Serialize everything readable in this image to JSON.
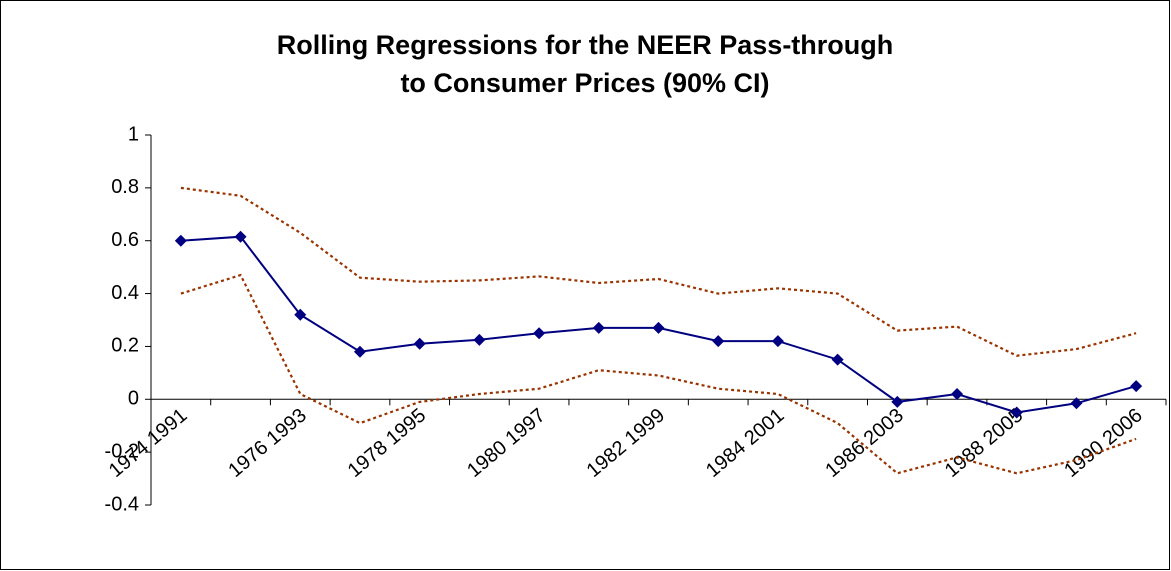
{
  "chart_data": {
    "type": "line",
    "title": [
      "Rolling Regressions for the NEER Pass-through",
      "to Consumer Prices (90% CI)"
    ],
    "categories": [
      "1974 1991",
      null,
      "1976 1993",
      null,
      "1978 1995",
      null,
      "1980 1997",
      null,
      "1982 1999",
      null,
      "1984 2001",
      null,
      "1986 2003",
      null,
      "1988 2005",
      null,
      "1990 2006"
    ],
    "series": [
      {
        "color": "#993300",
        "style": "dotted",
        "marker": false,
        "values": [
          0.8,
          0.77,
          0.63,
          0.46,
          0.445,
          0.45,
          0.465,
          0.44,
          0.455,
          0.4,
          0.42,
          0.4,
          0.26,
          0.275,
          0.165,
          0.19,
          0.25
        ]
      },
      {
        "color": "#000080",
        "style": "solid",
        "marker": true,
        "values": [
          0.6,
          0.615,
          0.32,
          0.18,
          0.21,
          0.225,
          0.25,
          0.27,
          0.27,
          0.22,
          0.22,
          0.15,
          -0.01,
          0.02,
          -0.05,
          -0.015,
          0.05
        ]
      },
      {
        "color": "#993300",
        "style": "dotted",
        "marker": false,
        "values": [
          0.4,
          0.47,
          0.02,
          -0.09,
          -0.01,
          0.02,
          0.04,
          0.11,
          0.09,
          0.04,
          0.02,
          -0.09,
          -0.28,
          -0.22,
          -0.28,
          -0.23,
          -0.15
        ]
      }
    ],
    "ylim": [
      -0.4,
      1
    ],
    "yticks": [
      -0.4,
      -0.2,
      0,
      0.2,
      0.4,
      0.6,
      0.8,
      1
    ],
    "grid": false
  }
}
